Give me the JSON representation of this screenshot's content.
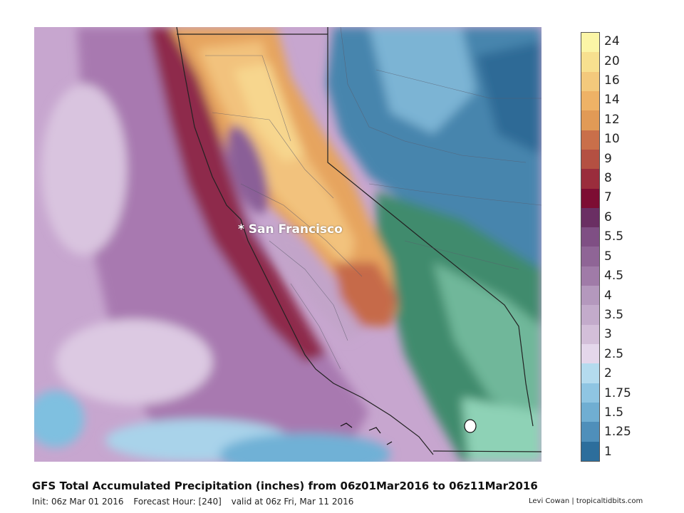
{
  "map": {
    "place_label": "* San Francisco",
    "title": "GFS Total Accumulated Precipitation (inches) from 06z01Mar2016 to 06z11Mar2016",
    "init": "Init: 06z Mar 01 2016",
    "forecast_hour": "Forecast Hour: [240]",
    "valid": "valid at 06z Fri, Mar 11 2016",
    "credit": "Levi Cowan | tropicaltidbits.com"
  },
  "colorbar": {
    "labels": [
      "24",
      "20",
      "16",
      "14",
      "12",
      "10",
      "9",
      "8",
      "7",
      "6",
      "5.5",
      "5",
      "4.5",
      "4",
      "3.5",
      "3",
      "2.5",
      "2",
      "1.75",
      "1.5",
      "1.25",
      "1"
    ],
    "colors": [
      "#fbf5a6",
      "#f7e08f",
      "#f3c97c",
      "#eeb266",
      "#e19a56",
      "#c96f4a",
      "#b45042",
      "#9a2d3c",
      "#7d0d33",
      "#6a2f63",
      "#7f4f84",
      "#8f6596",
      "#a07ba8",
      "#b498bd",
      "#c3abcb",
      "#d3bfd9",
      "#e4d7eb",
      "#b4dbee",
      "#8fc5e2",
      "#70aed2",
      "#4f8fba",
      "#2d6e9c"
    ]
  },
  "legend_colors": {
    "ocean_far": "#cbaad0",
    "ocean_near": "#b38cbe",
    "coast_band": "#8f2e4e",
    "central_valley": "#f1c17b",
    "sierra": "#e4a45f",
    "nevada_blue": "#3f7fa8",
    "desert_green": "#3f8a6c",
    "socal_ocean": "#5aa6cc"
  }
}
